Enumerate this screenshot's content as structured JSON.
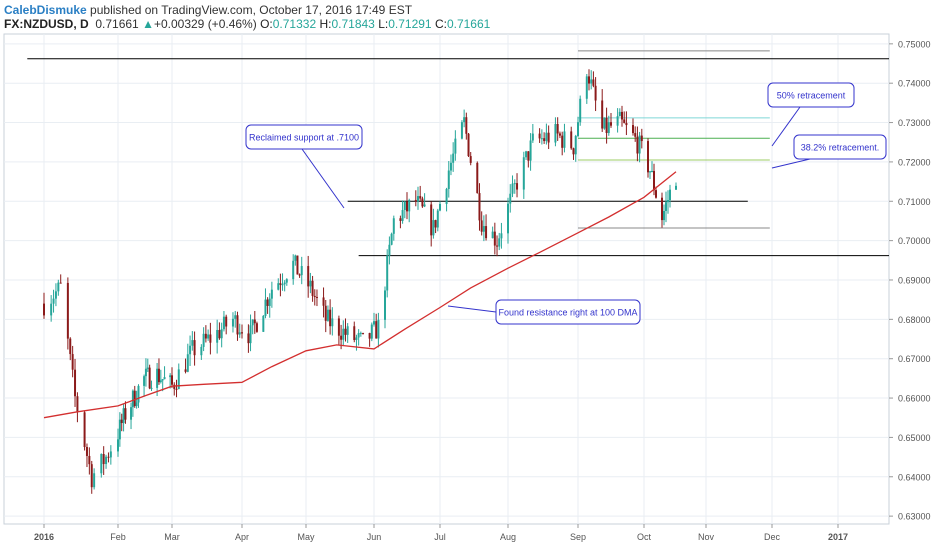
{
  "header": {
    "author": "CalebDismuke",
    "published_text": "published on TradingView.com, October 17, 2016 17:49 EST",
    "symbol": "FX:NZDUSD, D",
    "last": "0.71661",
    "change": "+0.00329 (+0.46%)",
    "o_label": "O:",
    "o_value": "0.71332",
    "h_label": "H:",
    "h_value": "0.71843",
    "l_label": "L:",
    "l_value": "0.71291",
    "c_label": "C:",
    "c_value": "0.71661",
    "up_arrow": "▲"
  },
  "colors": {
    "up": "#26a69a",
    "down": "#8b1a1a",
    "ma": "#d32f2f",
    "grid": "#e9eef3",
    "callout_border": "#3333cc",
    "callout_text": "#3333cc",
    "fib_cyan": "#7fd6d6",
    "fib_green": "#4caf50",
    "fib_yellowgreen": "#9ccc65"
  },
  "chart_data": {
    "type": "candlestick",
    "ylim": [
      0.628,
      0.7525
    ],
    "x_ticks": [
      "2016",
      "Feb",
      "Mar",
      "Apr",
      "May",
      "Jun",
      "Jul",
      "Aug",
      "Sep",
      "Oct",
      "Nov",
      "Dec",
      "2017"
    ],
    "y_ticks": [
      "0.75000",
      "0.74000",
      "0.73000",
      "0.72000",
      "0.71000",
      "0.70000",
      "0.69000",
      "0.68000",
      "0.67000",
      "0.66000",
      "0.65000",
      "0.64000",
      "0.63000"
    ],
    "ma_label": "100 DMA",
    "ma_points": [
      [
        "2016-01-01",
        0.655
      ],
      [
        "2016-01-15",
        0.6565
      ],
      [
        "2016-02-01",
        0.658
      ],
      [
        "2016-02-15",
        0.6605
      ],
      [
        "2016-03-01",
        0.663
      ],
      [
        "2016-03-15",
        0.6635
      ],
      [
        "2016-04-01",
        0.664
      ],
      [
        "2016-04-15",
        0.668
      ],
      [
        "2016-05-01",
        0.672
      ],
      [
        "2016-05-15",
        0.6735
      ],
      [
        "2016-06-01",
        0.6725
      ],
      [
        "2016-06-15",
        0.6775
      ],
      [
        "2016-07-01",
        0.683
      ],
      [
        "2016-07-15",
        0.688
      ],
      [
        "2016-08-01",
        0.693
      ],
      [
        "2016-08-15",
        0.697
      ],
      [
        "2016-09-01",
        0.702
      ],
      [
        "2016-09-15",
        0.706
      ],
      [
        "2016-10-01",
        0.711
      ],
      [
        "2016-10-17",
        0.7175
      ]
    ],
    "candles_start": "2016-01-01",
    "candles_end": "2016-10-17",
    "price_path": [
      [
        "2016-01-01",
        0.684
      ],
      [
        "2016-01-08",
        0.688
      ],
      [
        "2016-01-14",
        0.66
      ],
      [
        "2016-01-21",
        0.64
      ],
      [
        "2016-01-27",
        0.645
      ],
      [
        "2016-02-05",
        0.656
      ],
      [
        "2016-02-15",
        0.665
      ],
      [
        "2016-02-22",
        0.666
      ],
      [
        "2016-03-01",
        0.663
      ],
      [
        "2016-03-10",
        0.672
      ],
      [
        "2016-03-20",
        0.676
      ],
      [
        "2016-03-28",
        0.68
      ],
      [
        "2016-04-05",
        0.676
      ],
      [
        "2016-04-15",
        0.688
      ],
      [
        "2016-04-25",
        0.694
      ],
      [
        "2016-05-03",
        0.688
      ],
      [
        "2016-05-10",
        0.68
      ],
      [
        "2016-05-20",
        0.676
      ],
      [
        "2016-05-27",
        0.674
      ],
      [
        "2016-06-03",
        0.678
      ],
      [
        "2016-06-10",
        0.705
      ],
      [
        "2016-06-20",
        0.71
      ],
      [
        "2016-06-28",
        0.703
      ],
      [
        "2016-07-05",
        0.718
      ],
      [
        "2016-07-12",
        0.73
      ],
      [
        "2016-07-20",
        0.705
      ],
      [
        "2016-07-27",
        0.7
      ],
      [
        "2016-08-05",
        0.715
      ],
      [
        "2016-08-12",
        0.725
      ],
      [
        "2016-08-22",
        0.727
      ],
      [
        "2016-08-30",
        0.724
      ],
      [
        "2016-09-05",
        0.744
      ],
      [
        "2016-09-12",
        0.728
      ],
      [
        "2016-09-20",
        0.73
      ],
      [
        "2016-09-28",
        0.725
      ],
      [
        "2016-10-04",
        0.718
      ],
      [
        "2016-10-10",
        0.706
      ],
      [
        "2016-10-17",
        0.7166
      ]
    ],
    "levels": [
      {
        "from": "2015-12-25",
        "to": "2017-02-20",
        "y": 0.7462,
        "color": "#000000"
      },
      {
        "from": "2016-05-20",
        "to": "2016-11-20",
        "y": 0.71,
        "color": "#000000"
      },
      {
        "from": "2016-05-25",
        "to": "2017-02-20",
        "y": 0.6962,
        "color": "#000000"
      },
      {
        "from": "2016-09-01",
        "to": "2016-11-30",
        "y": 0.7482,
        "color": "#888888"
      },
      {
        "from": "2016-09-01",
        "to": "2016-11-30",
        "y": 0.7032,
        "color": "#888888"
      },
      {
        "from": "2016-09-01",
        "to": "2016-11-30",
        "y": 0.7312,
        "color": "#7fd6d6"
      },
      {
        "from": "2016-09-01",
        "to": "2016-11-30",
        "y": 0.726,
        "color": "#4caf50"
      },
      {
        "from": "2016-09-01",
        "to": "2016-11-30",
        "y": 0.7205,
        "color": "#9ccc65"
      }
    ],
    "annotations": [
      {
        "text": "Reclaimed support at .7100"
      },
      {
        "text": "Found resistance right at 100 DMA"
      },
      {
        "text": "50% retracement"
      },
      {
        "text": "38.2% retracement."
      }
    ]
  }
}
